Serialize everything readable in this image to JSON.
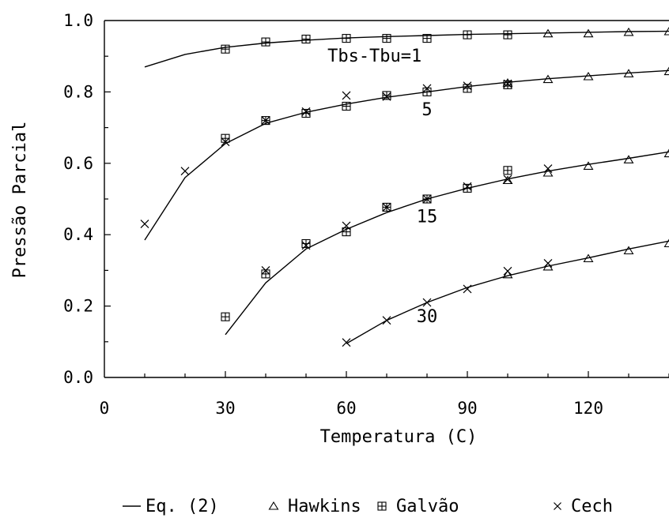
{
  "chart_data": {
    "type": "line",
    "title": "",
    "xlabel": "Temperatura (C)",
    "ylabel": "Pressão Parcial",
    "xlim": [
      0,
      140
    ],
    "ylim": [
      0.0,
      1.0
    ],
    "x_ticks": [
      0,
      30,
      60,
      90,
      120
    ],
    "x_tick_labels": [
      "0",
      "30",
      "60",
      "90",
      "120"
    ],
    "y_ticks": [
      0.0,
      0.2,
      0.4,
      0.6,
      0.8,
      1.0
    ],
    "y_tick_labels": [
      "0.0",
      "0.2",
      "0.4",
      "0.6",
      "0.8",
      "1.0"
    ],
    "grid": false,
    "legend": {
      "position": "bottom",
      "entries": [
        {
          "label": "Eq. (2)",
          "marker": "line"
        },
        {
          "label": "Hawkins",
          "marker": "triangle"
        },
        {
          "label": "Galvão",
          "marker": "boxplus"
        },
        {
          "label": "Cech",
          "marker": "cross"
        }
      ]
    },
    "curve_labels": [
      {
        "text": "Tbs-Tbu=1",
        "x": 67,
        "y": 0.885
      },
      {
        "text": "5",
        "x": 80,
        "y": 0.735
      },
      {
        "text": "15",
        "x": 80,
        "y": 0.435
      },
      {
        "text": "30",
        "x": 80,
        "y": 0.155
      }
    ],
    "series": [
      {
        "name": "Eq. (2)",
        "group": "1",
        "marker": "line",
        "x": [
          10,
          20,
          30,
          40,
          50,
          60,
          70,
          80,
          90,
          100,
          110,
          120,
          130,
          140
        ],
        "y": [
          0.87,
          0.905,
          0.925,
          0.937,
          0.945,
          0.951,
          0.955,
          0.958,
          0.961,
          0.963,
          0.965,
          0.967,
          0.969,
          0.97
        ]
      },
      {
        "name": "Eq. (2)",
        "group": "5",
        "marker": "line",
        "x": [
          10,
          20,
          30,
          40,
          50,
          60,
          70,
          80,
          90,
          100,
          110,
          120,
          130,
          140
        ],
        "y": [
          0.385,
          0.56,
          0.655,
          0.712,
          0.743,
          0.766,
          0.785,
          0.8,
          0.815,
          0.827,
          0.837,
          0.845,
          0.853,
          0.86
        ]
      },
      {
        "name": "Eq. (2)",
        "group": "15",
        "marker": "line",
        "x": [
          30,
          40,
          50,
          60,
          70,
          80,
          90,
          100,
          110,
          120,
          130,
          140
        ],
        "y": [
          0.12,
          0.265,
          0.36,
          0.415,
          0.462,
          0.5,
          0.53,
          0.556,
          0.578,
          0.597,
          0.614,
          0.632
        ]
      },
      {
        "name": "Eq. (2)",
        "group": "30",
        "marker": "line",
        "x": [
          60,
          70,
          80,
          90,
          100,
          110,
          120,
          130,
          140
        ],
        "y": [
          0.095,
          0.16,
          0.21,
          0.252,
          0.285,
          0.312,
          0.335,
          0.36,
          0.382
        ]
      },
      {
        "name": "Hawkins",
        "group": "1",
        "marker": "triangle",
        "x": [
          110,
          120,
          130,
          140
        ],
        "y": [
          0.963,
          0.963,
          0.967,
          0.969
        ]
      },
      {
        "name": "Hawkins",
        "group": "5",
        "marker": "triangle",
        "x": [
          100,
          110,
          120,
          130,
          140
        ],
        "y": [
          0.825,
          0.835,
          0.843,
          0.851,
          0.857
        ]
      },
      {
        "name": "Hawkins",
        "group": "15",
        "marker": "triangle",
        "x": [
          100,
          110,
          120,
          130,
          140
        ],
        "y": [
          0.552,
          0.573,
          0.592,
          0.61,
          0.627
        ]
      },
      {
        "name": "Hawkins",
        "group": "30",
        "marker": "triangle",
        "x": [
          100,
          110,
          120,
          130,
          140
        ],
        "y": [
          0.288,
          0.31,
          0.333,
          0.355,
          0.375
        ]
      },
      {
        "name": "Galvão",
        "group": "1",
        "marker": "boxplus",
        "x": [
          30,
          40,
          50,
          60,
          70,
          80,
          90,
          100
        ],
        "y": [
          0.92,
          0.94,
          0.948,
          0.95,
          0.95,
          0.95,
          0.96,
          0.96
        ]
      },
      {
        "name": "Galvão",
        "group": "5",
        "marker": "boxplus",
        "x": [
          30,
          40,
          50,
          60,
          70,
          80,
          90,
          100
        ],
        "y": [
          0.67,
          0.72,
          0.74,
          0.76,
          0.79,
          0.8,
          0.81,
          0.82
        ]
      },
      {
        "name": "Galvão",
        "group": "15",
        "marker": "boxplus",
        "x": [
          30,
          40,
          50,
          60,
          70,
          80,
          90,
          100
        ],
        "y": [
          0.17,
          0.29,
          0.375,
          0.408,
          0.477,
          0.5,
          0.53,
          0.58
        ]
      },
      {
        "name": "Cech",
        "group": "5",
        "marker": "cross",
        "x": [
          10,
          20,
          30,
          40,
          50,
          60,
          70,
          80,
          90,
          100
        ],
        "y": [
          0.43,
          0.578,
          0.66,
          0.72,
          0.745,
          0.79,
          0.787,
          0.81,
          0.817,
          0.823
        ]
      },
      {
        "name": "Cech",
        "group": "15",
        "marker": "cross",
        "x": [
          40,
          50,
          60,
          70,
          80,
          90,
          100,
          110
        ],
        "y": [
          0.3,
          0.37,
          0.425,
          0.477,
          0.5,
          0.535,
          0.555,
          0.585
        ]
      },
      {
        "name": "Cech",
        "group": "30",
        "marker": "cross",
        "x": [
          60,
          70,
          80,
          90,
          100,
          110
        ],
        "y": [
          0.098,
          0.16,
          0.21,
          0.248,
          0.298,
          0.32
        ]
      }
    ]
  }
}
